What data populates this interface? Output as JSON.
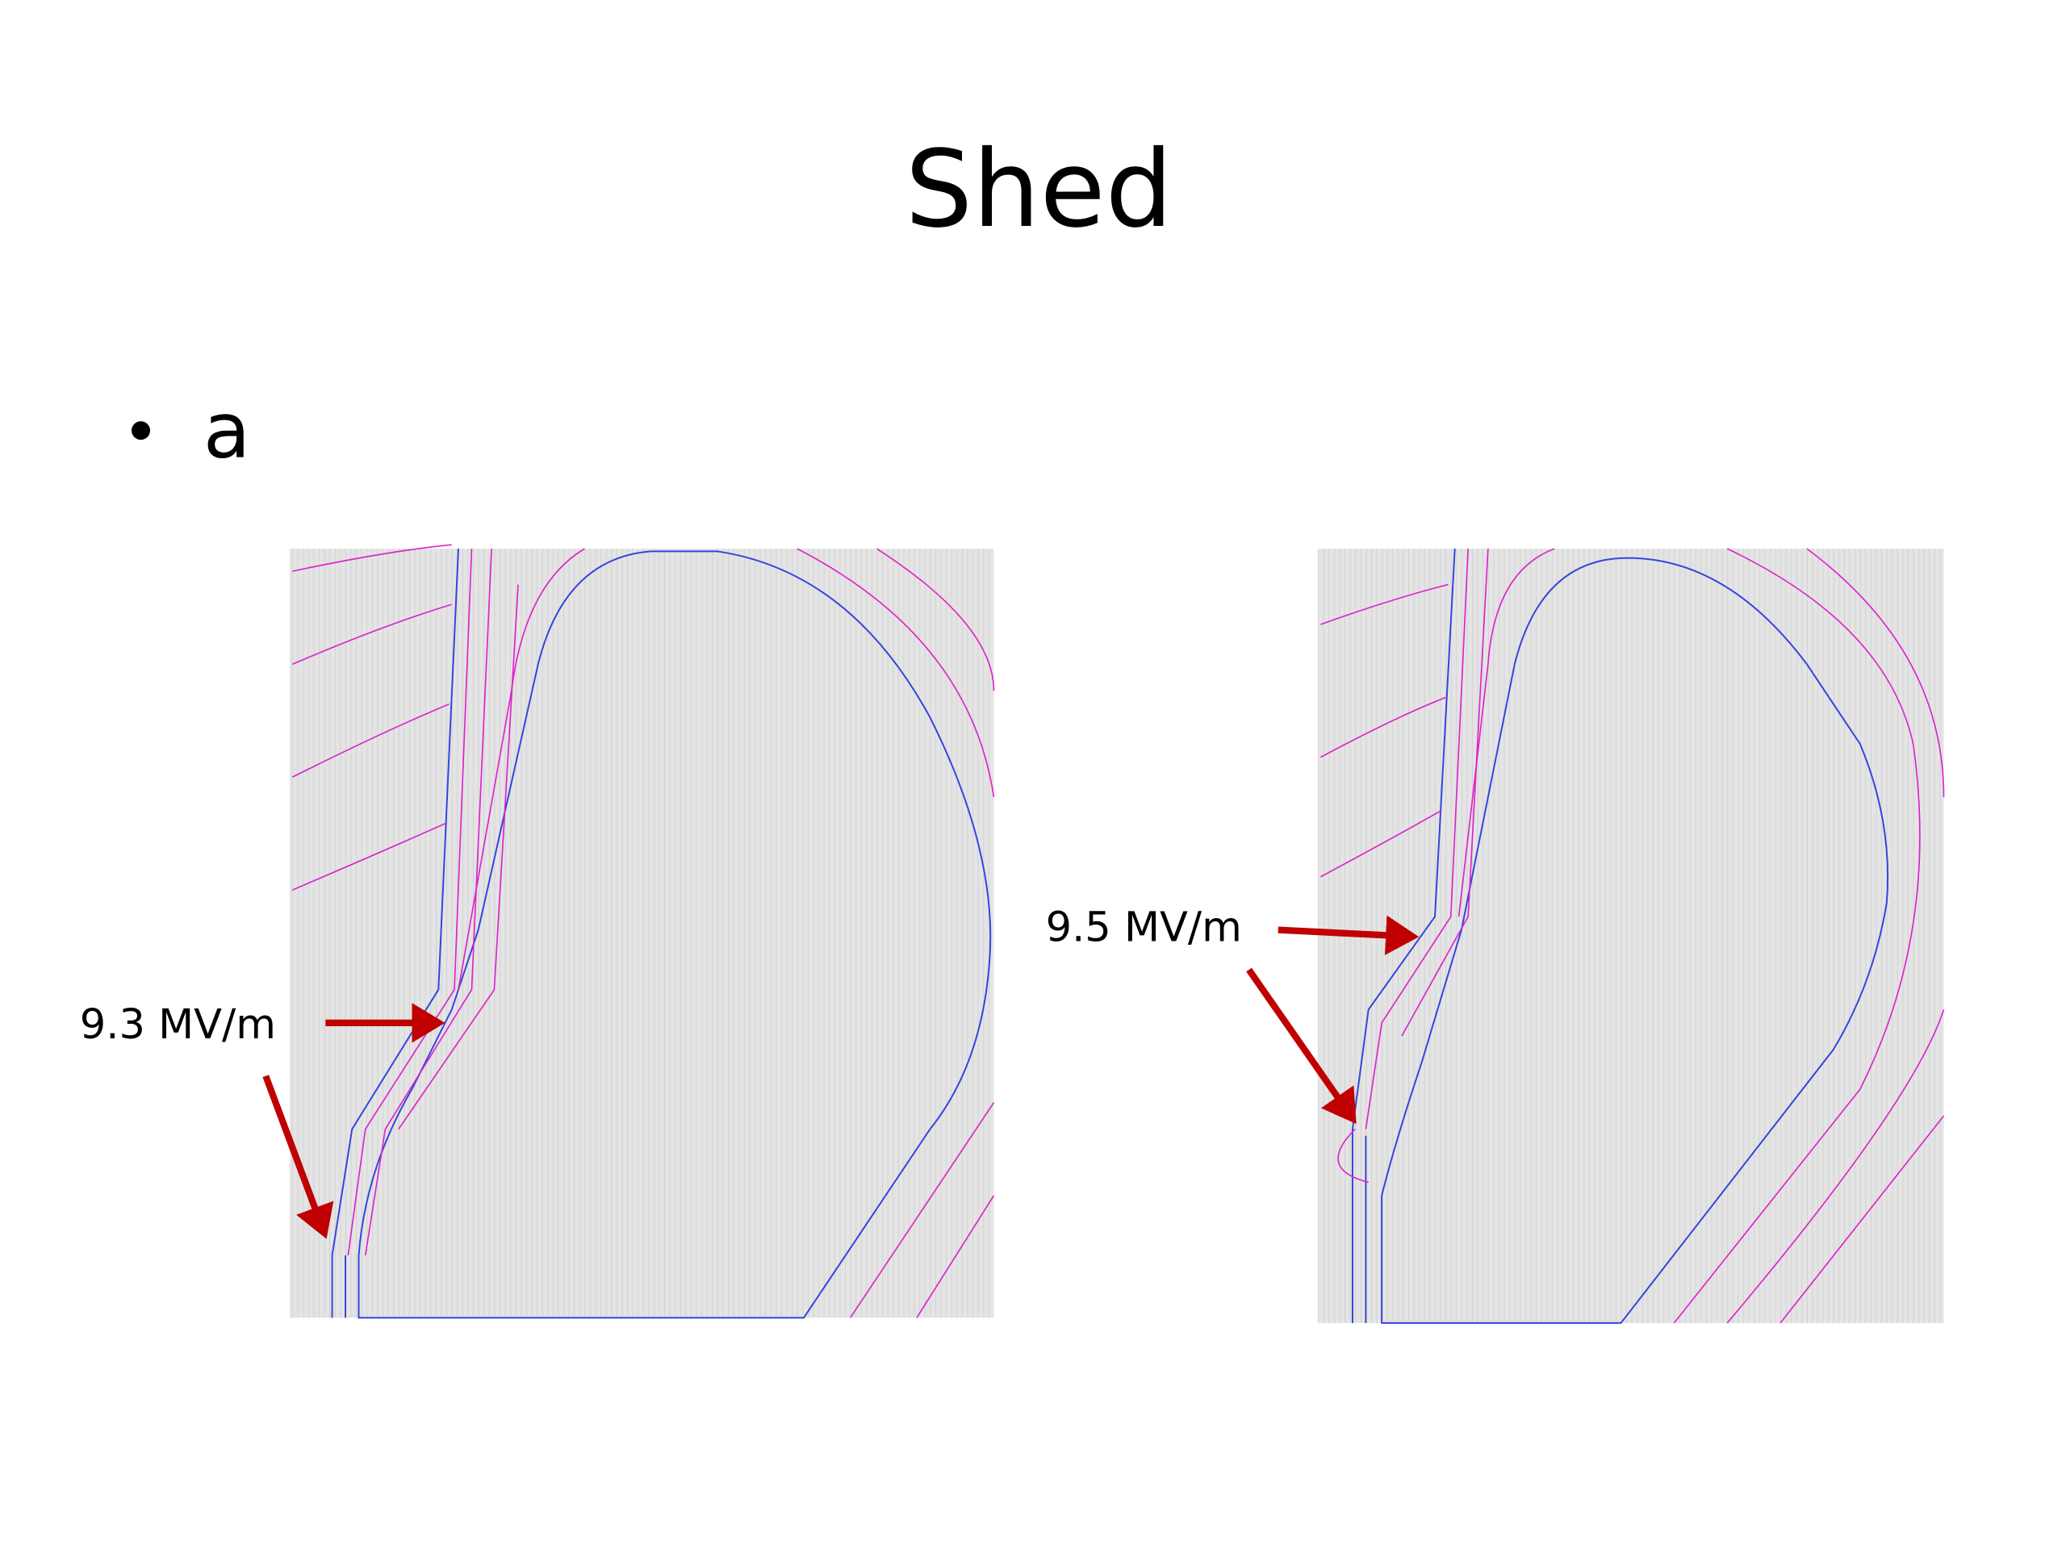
{
  "title": "Shed",
  "bullets": [
    "a"
  ],
  "figures": [
    {
      "annotation": "9.3 MV/m"
    },
    {
      "annotation": "9.5 MV/m"
    }
  ]
}
